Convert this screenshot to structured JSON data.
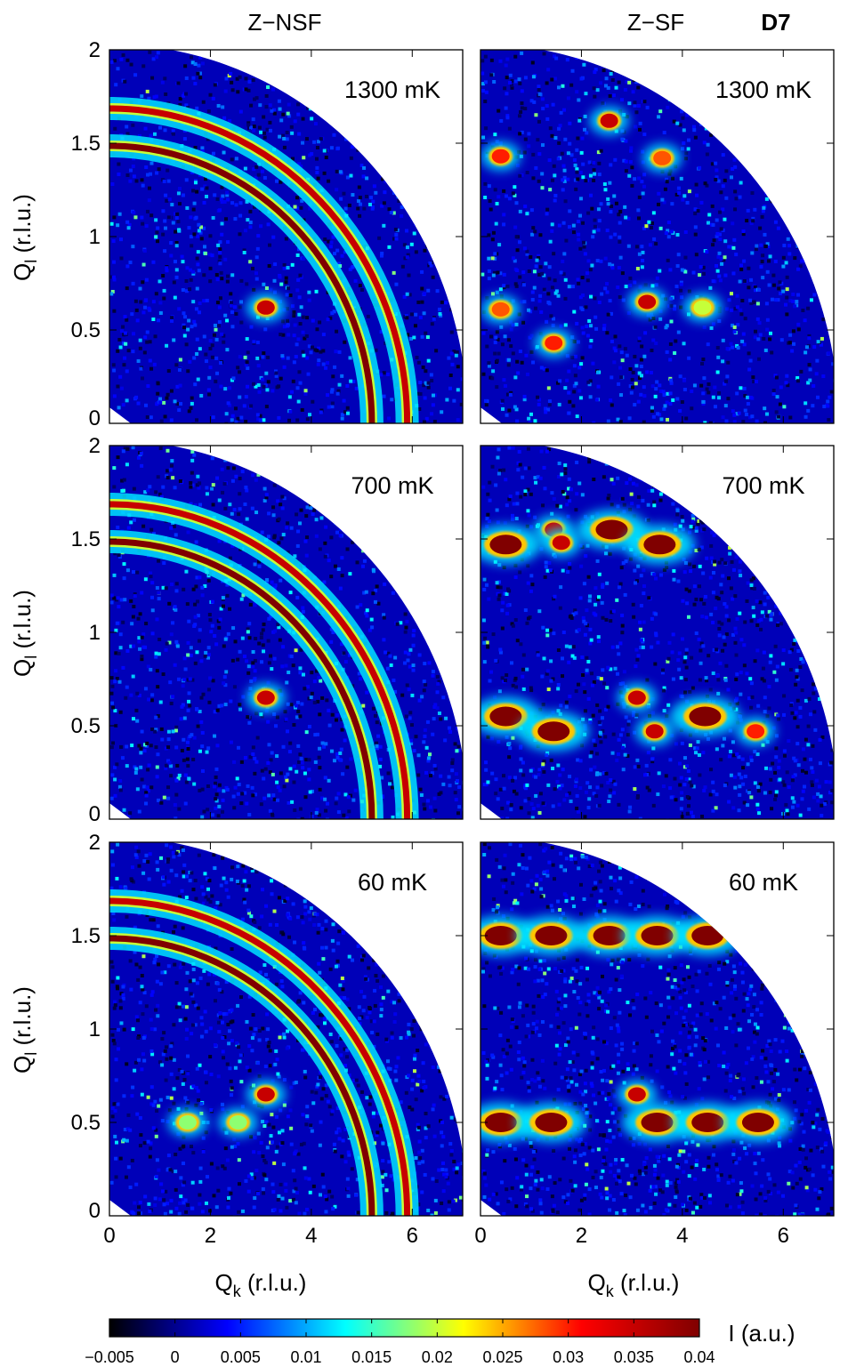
{
  "figure": {
    "label": "D7",
    "column_titles": [
      "Z−NSF",
      "Z−SF"
    ],
    "xlabel": {
      "main": "Q",
      "sub": "k",
      "unit": " (r.l.u.)"
    },
    "ylabel": {
      "main": "Q",
      "sub": "l",
      "unit": " (r.l.u.)"
    },
    "colorbar": {
      "label": "I (a.u.)",
      "range": [
        -0.005,
        0.04
      ],
      "ticks": [
        -0.005,
        0,
        0.005,
        0.01,
        0.015,
        0.02,
        0.025,
        0.03,
        0.035,
        0.04
      ],
      "tick_labels": [
        "−0.005",
        "0",
        "0.005",
        "0.01",
        "0.015",
        "0.02",
        "0.025",
        "0.03",
        "0.035",
        "0.04"
      ],
      "colormap": [
        "#000000",
        "#0000ff",
        "#00ffff",
        "#ffff00",
        "#ff0000",
        "#800000"
      ]
    }
  },
  "chart_data": [
    {
      "type": "heatmap",
      "row": 0,
      "col": 0,
      "temperature": "1300 mK",
      "channel": "Z−NSF",
      "xlim": [
        0,
        7
      ],
      "ylim": [
        0,
        2
      ],
      "xticks": [
        0,
        2,
        4,
        6
      ],
      "yticks": [
        0,
        0.5,
        1,
        1.5,
        2
      ],
      "xticklabels": [
        "0",
        "2",
        "4",
        "6"
      ],
      "yticklabels": [
        "0",
        "0.5",
        "1",
        "1.5",
        "2"
      ],
      "rings": [
        {
          "qk_radius": 5.2,
          "intensity": 0.04
        },
        {
          "qk_radius": 5.9,
          "intensity": 0.035
        }
      ],
      "spots": [
        {
          "qk": 3.1,
          "ql": 0.62,
          "intensity": 0.035
        }
      ]
    },
    {
      "type": "heatmap",
      "row": 0,
      "col": 1,
      "temperature": "1300 mK",
      "channel": "Z−SF",
      "xlim": [
        0,
        7
      ],
      "ylim": [
        0,
        2
      ],
      "xticks": [
        0,
        2,
        4,
        6
      ],
      "yticks": [
        0,
        0.5,
        1,
        1.5,
        2
      ],
      "xticklabels": [
        "0",
        "2",
        "4",
        "6"
      ],
      "yticklabels": [
        "0",
        "0.5",
        "1",
        "1.5",
        "2"
      ],
      "rings": [],
      "spots": [
        {
          "qk": 2.55,
          "ql": 1.62,
          "intensity": 0.035
        },
        {
          "qk": 0.4,
          "ql": 1.43,
          "intensity": 0.03
        },
        {
          "qk": 3.6,
          "ql": 1.42,
          "intensity": 0.028
        },
        {
          "qk": 0.4,
          "ql": 0.61,
          "intensity": 0.028
        },
        {
          "qk": 1.45,
          "ql": 0.43,
          "intensity": 0.03
        },
        {
          "qk": 4.4,
          "ql": 0.62,
          "intensity": 0.02
        },
        {
          "qk": 3.3,
          "ql": 0.65,
          "intensity": 0.035
        }
      ]
    },
    {
      "type": "heatmap",
      "row": 1,
      "col": 0,
      "temperature": "700 mK",
      "channel": "Z−NSF",
      "xlim": [
        0,
        7
      ],
      "ylim": [
        0,
        2
      ],
      "xticks": [
        0,
        2,
        4,
        6
      ],
      "yticks": [
        0,
        0.5,
        1,
        1.5,
        2
      ],
      "xticklabels": [
        "0",
        "2",
        "4",
        "6"
      ],
      "yticklabels": [
        "0",
        "0.5",
        "1",
        "1.5",
        "2"
      ],
      "rings": [
        {
          "qk_radius": 5.2,
          "intensity": 0.04
        },
        {
          "qk_radius": 5.9,
          "intensity": 0.035
        }
      ],
      "spots": [
        {
          "qk": 3.1,
          "ql": 0.65,
          "intensity": 0.035
        }
      ]
    },
    {
      "type": "heatmap",
      "row": 1,
      "col": 1,
      "temperature": "700 mK",
      "channel": "Z−SF",
      "xlim": [
        0,
        7
      ],
      "ylim": [
        0,
        2
      ],
      "xticks": [
        0,
        2,
        4,
        6
      ],
      "yticks": [
        0,
        0.5,
        1,
        1.5,
        2
      ],
      "xticklabels": [
        "0",
        "2",
        "4",
        "6"
      ],
      "yticklabels": [
        "0",
        "0.5",
        "1",
        "1.5",
        "2"
      ],
      "rings": [],
      "spots": [
        {
          "qk": 0.5,
          "ql": 1.47,
          "intensity": 0.04
        },
        {
          "qk": 1.45,
          "ql": 1.55,
          "intensity": 0.035
        },
        {
          "qk": 1.6,
          "ql": 1.48,
          "intensity": 0.035
        },
        {
          "qk": 2.6,
          "ql": 1.55,
          "intensity": 0.04
        },
        {
          "qk": 3.55,
          "ql": 1.47,
          "intensity": 0.04
        },
        {
          "qk": 0.5,
          "ql": 0.55,
          "intensity": 0.04
        },
        {
          "qk": 1.45,
          "ql": 0.47,
          "intensity": 0.04
        },
        {
          "qk": 3.45,
          "ql": 0.47,
          "intensity": 0.035
        },
        {
          "qk": 4.45,
          "ql": 0.55,
          "intensity": 0.04
        },
        {
          "qk": 5.45,
          "ql": 0.47,
          "intensity": 0.03
        },
        {
          "qk": 3.1,
          "ql": 0.65,
          "intensity": 0.035
        }
      ]
    },
    {
      "type": "heatmap",
      "row": 2,
      "col": 0,
      "temperature": "60 mK",
      "channel": "Z−NSF",
      "xlim": [
        0,
        7
      ],
      "ylim": [
        0,
        2
      ],
      "xticks": [
        0,
        2,
        4,
        6
      ],
      "yticks": [
        0,
        0.5,
        1,
        1.5,
        2
      ],
      "xticklabels": [
        "0",
        "2",
        "4",
        "6"
      ],
      "yticklabels": [
        "0",
        "0.5",
        "1",
        "1.5",
        "2"
      ],
      "rings": [
        {
          "qk_radius": 5.2,
          "intensity": 0.04
        },
        {
          "qk_radius": 5.9,
          "intensity": 0.035
        }
      ],
      "spots": [
        {
          "qk": 3.1,
          "ql": 0.65,
          "intensity": 0.035
        },
        {
          "qk": 1.55,
          "ql": 0.5,
          "intensity": 0.018
        },
        {
          "qk": 2.55,
          "ql": 0.5,
          "intensity": 0.018
        }
      ]
    },
    {
      "type": "heatmap",
      "row": 2,
      "col": 1,
      "temperature": "60 mK",
      "channel": "Z−SF",
      "xlim": [
        0,
        7
      ],
      "ylim": [
        0,
        2
      ],
      "xticks": [
        0,
        2,
        4,
        6
      ],
      "yticks": [
        0,
        0.5,
        1,
        1.5,
        2
      ],
      "xticklabels": [
        "0",
        "2",
        "4",
        "6"
      ],
      "yticklabels": [
        "0",
        "0.5",
        "1",
        "1.5",
        "2"
      ],
      "rings": [],
      "spots": [
        {
          "qk": 0.4,
          "ql": 1.5,
          "intensity": 0.04
        },
        {
          "qk": 1.4,
          "ql": 1.5,
          "intensity": 0.04
        },
        {
          "qk": 2.55,
          "ql": 1.5,
          "intensity": 0.04
        },
        {
          "qk": 3.5,
          "ql": 1.5,
          "intensity": 0.04
        },
        {
          "qk": 4.5,
          "ql": 1.5,
          "intensity": 0.04
        },
        {
          "qk": 0.4,
          "ql": 0.5,
          "intensity": 0.04
        },
        {
          "qk": 1.4,
          "ql": 0.5,
          "intensity": 0.04
        },
        {
          "qk": 3.5,
          "ql": 0.5,
          "intensity": 0.04
        },
        {
          "qk": 4.5,
          "ql": 0.5,
          "intensity": 0.04
        },
        {
          "qk": 5.5,
          "ql": 0.5,
          "intensity": 0.04
        },
        {
          "qk": 3.1,
          "ql": 0.65,
          "intensity": 0.035
        }
      ]
    }
  ]
}
